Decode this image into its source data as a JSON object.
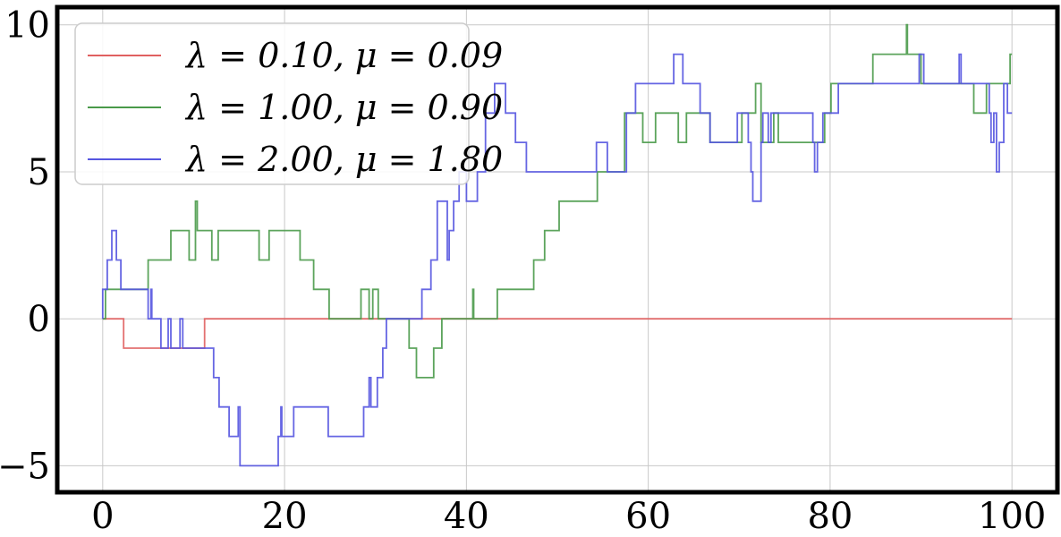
{
  "chart_data": {
    "type": "line",
    "title": "",
    "xlabel": "",
    "ylabel": "",
    "xlim": [
      -5,
      105
    ],
    "ylim": [
      -5.9,
      10.6
    ],
    "grid": true,
    "legend_position": "top-left",
    "x_ticks": [
      0,
      20,
      40,
      60,
      80,
      100
    ],
    "y_ticks": [
      -5,
      0,
      5,
      10
    ],
    "x_tick_labels": [
      "0",
      "20",
      "40",
      "60",
      "80",
      "100"
    ],
    "y_tick_labels": [
      "−5",
      "0",
      "5",
      "10"
    ],
    "series": [
      {
        "name": "λ = 0.10, μ = 0.09",
        "color": "#e06060",
        "points": [
          [
            0,
            0
          ],
          [
            2.3,
            0
          ],
          [
            2.3,
            -1
          ],
          [
            11.2,
            -1
          ],
          [
            11.2,
            0
          ],
          [
            100,
            0
          ]
        ]
      },
      {
        "name": "λ = 1.00, μ = 0.90",
        "color": "#4a9a4a",
        "points": [
          [
            0,
            0
          ],
          [
            0.3,
            0
          ],
          [
            0.3,
            1
          ],
          [
            5,
            1
          ],
          [
            5,
            2
          ],
          [
            7.5,
            2
          ],
          [
            7.5,
            3
          ],
          [
            9.5,
            3
          ],
          [
            9.5,
            2
          ],
          [
            10.2,
            2
          ],
          [
            10.2,
            4
          ],
          [
            10.4,
            4
          ],
          [
            10.4,
            3
          ],
          [
            12,
            3
          ],
          [
            12,
            2
          ],
          [
            12.7,
            2
          ],
          [
            12.7,
            3
          ],
          [
            17.2,
            3
          ],
          [
            17.2,
            2
          ],
          [
            18.3,
            2
          ],
          [
            18.3,
            3
          ],
          [
            21.7,
            3
          ],
          [
            21.7,
            2
          ],
          [
            23.2,
            2
          ],
          [
            23.2,
            1
          ],
          [
            24.9,
            1
          ],
          [
            24.9,
            0
          ],
          [
            28.4,
            0
          ],
          [
            28.4,
            1
          ],
          [
            29.3,
            1
          ],
          [
            29.3,
            0
          ],
          [
            29.7,
            0
          ],
          [
            29.7,
            1
          ],
          [
            30.3,
            1
          ],
          [
            30.3,
            0
          ],
          [
            33.7,
            0
          ],
          [
            33.7,
            -1
          ],
          [
            34.5,
            -1
          ],
          [
            34.5,
            -2
          ],
          [
            36.4,
            -2
          ],
          [
            36.4,
            -1
          ],
          [
            37.3,
            -1
          ],
          [
            37.3,
            0
          ],
          [
            40.7,
            0
          ],
          [
            40.7,
            1
          ],
          [
            40.8,
            1
          ],
          [
            40.8,
            0
          ],
          [
            43.4,
            0
          ],
          [
            43.4,
            1
          ],
          [
            47.4,
            1
          ],
          [
            47.4,
            2
          ],
          [
            48.6,
            2
          ],
          [
            48.6,
            3
          ],
          [
            50.2,
            3
          ],
          [
            50.2,
            4
          ],
          [
            54.4,
            4
          ],
          [
            54.4,
            5
          ],
          [
            57.4,
            5
          ],
          [
            57.4,
            7
          ],
          [
            59.4,
            7
          ],
          [
            59.4,
            6
          ],
          [
            60.8,
            6
          ],
          [
            60.8,
            7
          ],
          [
            63.3,
            7
          ],
          [
            63.3,
            6
          ],
          [
            64.2,
            6
          ],
          [
            64.2,
            7
          ],
          [
            66.8,
            7
          ],
          [
            66.8,
            6
          ],
          [
            70.3,
            6
          ],
          [
            70.3,
            7
          ],
          [
            71.8,
            7
          ],
          [
            71.8,
            8
          ],
          [
            72.4,
            8
          ],
          [
            72.4,
            6
          ],
          [
            73.8,
            6
          ],
          [
            73.8,
            7
          ],
          [
            74.3,
            7
          ],
          [
            74.3,
            6
          ],
          [
            79.4,
            6
          ],
          [
            79.4,
            7
          ],
          [
            80.1,
            7
          ],
          [
            80.1,
            8
          ],
          [
            84.7,
            8
          ],
          [
            84.7,
            9
          ],
          [
            88.4,
            9
          ],
          [
            88.4,
            10
          ],
          [
            88.5,
            10
          ],
          [
            88.5,
            9
          ],
          [
            90,
            9
          ],
          [
            90,
            8
          ],
          [
            95.8,
            8
          ],
          [
            95.8,
            7
          ],
          [
            97.2,
            7
          ],
          [
            97.2,
            8
          ],
          [
            99.8,
            8
          ],
          [
            99.8,
            9
          ],
          [
            100,
            9
          ]
        ]
      },
      {
        "name": "λ = 2.00, μ = 1.80",
        "color": "#5555e0",
        "points": [
          [
            0,
            0
          ],
          [
            0,
            1
          ],
          [
            0.5,
            1
          ],
          [
            0.5,
            2
          ],
          [
            1,
            2
          ],
          [
            1,
            3
          ],
          [
            1.5,
            3
          ],
          [
            1.5,
            2
          ],
          [
            2,
            2
          ],
          [
            2,
            1
          ],
          [
            5,
            1
          ],
          [
            5,
            0
          ],
          [
            5.3,
            0
          ],
          [
            5.3,
            1
          ],
          [
            5.4,
            1
          ],
          [
            5.4,
            0
          ],
          [
            6.4,
            0
          ],
          [
            6.4,
            -1
          ],
          [
            7.2,
            -1
          ],
          [
            7.2,
            0
          ],
          [
            7.5,
            0
          ],
          [
            7.5,
            -1
          ],
          [
            8.5,
            -1
          ],
          [
            8.5,
            0
          ],
          [
            8.8,
            0
          ],
          [
            8.8,
            -1
          ],
          [
            12.2,
            -1
          ],
          [
            12.2,
            -2
          ],
          [
            12.8,
            -2
          ],
          [
            12.8,
            -3
          ],
          [
            13.9,
            -3
          ],
          [
            13.9,
            -4
          ],
          [
            14.9,
            -4
          ],
          [
            14.9,
            -3
          ],
          [
            15.1,
            -3
          ],
          [
            15.1,
            -5
          ],
          [
            19.3,
            -5
          ],
          [
            19.3,
            -4
          ],
          [
            19.6,
            -4
          ],
          [
            19.6,
            -3
          ],
          [
            19.7,
            -3
          ],
          [
            19.7,
            -4
          ],
          [
            21,
            -4
          ],
          [
            21,
            -3
          ],
          [
            24.8,
            -3
          ],
          [
            24.8,
            -4
          ],
          [
            28.7,
            -4
          ],
          [
            28.7,
            -3
          ],
          [
            29.3,
            -3
          ],
          [
            29.3,
            -2
          ],
          [
            29.5,
            -2
          ],
          [
            29.5,
            -3
          ],
          [
            30.2,
            -3
          ],
          [
            30.2,
            -2
          ],
          [
            30.8,
            -2
          ],
          [
            30.8,
            -1
          ],
          [
            31.2,
            -1
          ],
          [
            31.2,
            0
          ],
          [
            35.1,
            0
          ],
          [
            35.1,
            1
          ],
          [
            36.1,
            1
          ],
          [
            36.1,
            2
          ],
          [
            36.8,
            2
          ],
          [
            36.8,
            4
          ],
          [
            37.9,
            4
          ],
          [
            37.9,
            2
          ],
          [
            38.1,
            2
          ],
          [
            38.1,
            3
          ],
          [
            38.6,
            3
          ],
          [
            38.6,
            4
          ],
          [
            39.2,
            4
          ],
          [
            39.2,
            5
          ],
          [
            40,
            5
          ],
          [
            40,
            4
          ],
          [
            41.2,
            4
          ],
          [
            41.2,
            5
          ],
          [
            42.1,
            5
          ],
          [
            42.1,
            7
          ],
          [
            43.1,
            7
          ],
          [
            43.1,
            8
          ],
          [
            44.3,
            8
          ],
          [
            44.3,
            7
          ],
          [
            45.4,
            7
          ],
          [
            45.4,
            6
          ],
          [
            46.6,
            6
          ],
          [
            46.6,
            5
          ],
          [
            54.3,
            5
          ],
          [
            54.3,
            6
          ],
          [
            55.5,
            6
          ],
          [
            55.5,
            5
          ],
          [
            57.6,
            5
          ],
          [
            57.6,
            7
          ],
          [
            58.6,
            7
          ],
          [
            58.6,
            8
          ],
          [
            62.8,
            8
          ],
          [
            62.8,
            9
          ],
          [
            63.8,
            9
          ],
          [
            63.8,
            8
          ],
          [
            65.7,
            8
          ],
          [
            65.7,
            7
          ],
          [
            66.8,
            7
          ],
          [
            66.8,
            6
          ],
          [
            69.8,
            6
          ],
          [
            69.8,
            7
          ],
          [
            71,
            7
          ],
          [
            71,
            6
          ],
          [
            71.3,
            6
          ],
          [
            71.3,
            5
          ],
          [
            71.5,
            5
          ],
          [
            71.5,
            4
          ],
          [
            72.4,
            4
          ],
          [
            72.4,
            6
          ],
          [
            72.6,
            6
          ],
          [
            72.6,
            7
          ],
          [
            73.2,
            7
          ],
          [
            73.2,
            6
          ],
          [
            73.5,
            6
          ],
          [
            73.5,
            7
          ],
          [
            78.1,
            7
          ],
          [
            78.1,
            6
          ],
          [
            78.3,
            6
          ],
          [
            78.3,
            5
          ],
          [
            78.6,
            5
          ],
          [
            78.6,
            6
          ],
          [
            79.2,
            6
          ],
          [
            79.2,
            7
          ],
          [
            80.9,
            7
          ],
          [
            80.9,
            8
          ],
          [
            89.8,
            8
          ],
          [
            89.8,
            9
          ],
          [
            90.3,
            9
          ],
          [
            90.3,
            8
          ],
          [
            94.2,
            8
          ],
          [
            94.2,
            9
          ],
          [
            94.4,
            9
          ],
          [
            94.4,
            8
          ],
          [
            97.5,
            8
          ],
          [
            97.5,
            7
          ],
          [
            97.7,
            7
          ],
          [
            97.7,
            6
          ],
          [
            98,
            6
          ],
          [
            98,
            7
          ],
          [
            98.3,
            7
          ],
          [
            98.3,
            5
          ],
          [
            98.6,
            5
          ],
          [
            98.6,
            6
          ],
          [
            99.1,
            6
          ],
          [
            99.1,
            8
          ],
          [
            99.5,
            8
          ],
          [
            99.5,
            7
          ],
          [
            100,
            7
          ]
        ]
      }
    ]
  }
}
